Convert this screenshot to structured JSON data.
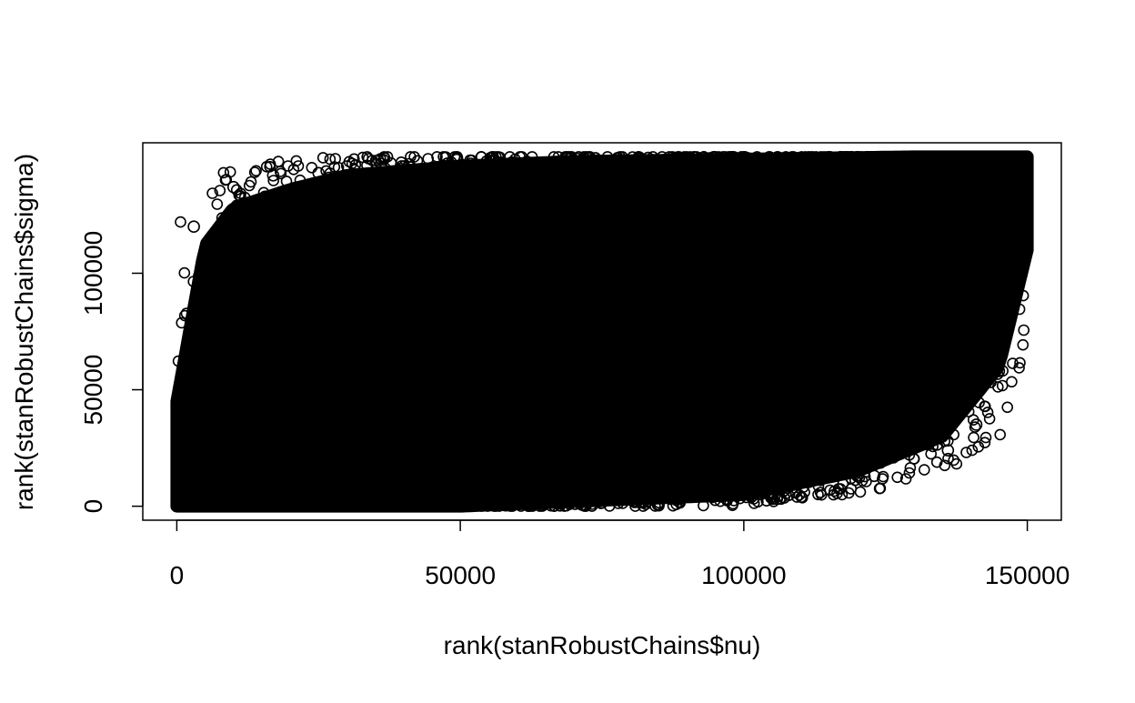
{
  "chart_data": {
    "type": "scatter",
    "title": "",
    "xlabel": "rank(stanRobustChains$nu)",
    "ylabel": "rank(stanRobustChains$sigma)",
    "xlim": [
      -6000,
      156000
    ],
    "ylim": [
      -6000,
      156000
    ],
    "x_ticks": [
      0,
      50000,
      100000,
      150000
    ],
    "x_tick_labels": [
      "0",
      "50000",
      "100000",
      "150000"
    ],
    "y_ticks": [
      0,
      50000,
      100000
    ],
    "y_tick_labels": [
      "0",
      "50000",
      "100000"
    ],
    "marker": "open-circle",
    "grid": false,
    "n_points": 150000,
    "description_series": [
      {
        "name": "upper boundary of point cloud (approx.)",
        "x": [
          0,
          5000,
          10000,
          20000,
          30000,
          50000,
          70000,
          100000,
          130000,
          150000
        ],
        "y": [
          45000,
          112000,
          128000,
          136000,
          142000,
          146000,
          148000,
          149000,
          150000,
          150000
        ]
      },
      {
        "name": "lower boundary of point cloud (approx.)",
        "x": [
          0,
          50000,
          100000,
          120000,
          135000,
          145000,
          150000
        ],
        "y": [
          0,
          0,
          5000,
          15000,
          30000,
          60000,
          110000
        ]
      }
    ],
    "outliers": [
      {
        "x": 10000,
        "y": 137000
      },
      {
        "x": 17000,
        "y": 142000
      },
      {
        "x": 25000,
        "y": 143000
      },
      {
        "x": 36000,
        "y": 147000
      },
      {
        "x": 145000,
        "y": 58000
      },
      {
        "x": 141000,
        "y": 35000
      },
      {
        "x": 136000,
        "y": 24000
      },
      {
        "x": 123000,
        "y": 13000
      },
      {
        "x": 3000,
        "y": 120000
      }
    ],
    "colors": {
      "points": "#000000",
      "background": "#ffffff",
      "axis": "#000000"
    }
  }
}
